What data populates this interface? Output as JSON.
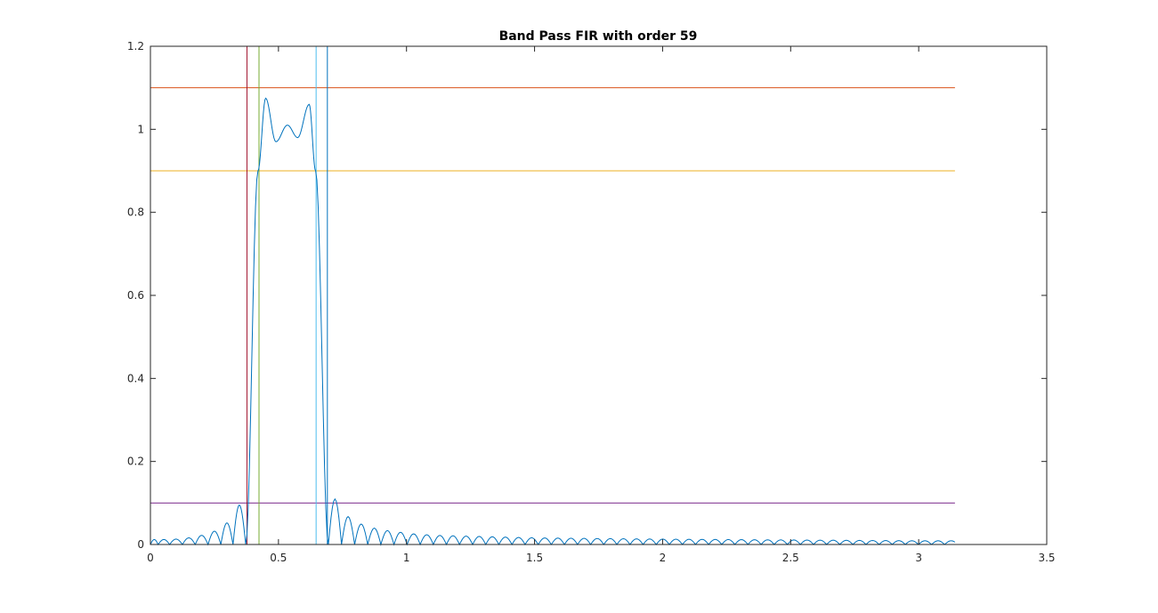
{
  "chart_data": {
    "type": "line",
    "title": "Band Pass FIR with order 59",
    "xlabel": "",
    "ylabel": "",
    "xlim": [
      0,
      3.5
    ],
    "ylim": [
      0,
      1.2
    ],
    "xticks": [
      0,
      0.5,
      1,
      1.5,
      2,
      2.5,
      3,
      3.5
    ],
    "xtick_labels": [
      "0",
      "0.5",
      "1",
      "1.5",
      "2",
      "2.5",
      "3",
      "3.5"
    ],
    "yticks": [
      0,
      0.2,
      0.4,
      0.6,
      0.8,
      1,
      1.2
    ],
    "ytick_labels": [
      "0",
      "0.2",
      "0.4",
      "0.6",
      "0.8",
      "1",
      "1.2"
    ],
    "grid": false,
    "box": true,
    "series": [
      {
        "kind": "magnitude-response",
        "color": "#0072bd",
        "x_range": [
          0,
          3.1416
        ],
        "passband_peaks": [
          {
            "x": 0.45,
            "y": 1.075
          },
          {
            "x": 0.49,
            "y": 0.97
          },
          {
            "x": 0.535,
            "y": 1.01
          },
          {
            "x": 0.575,
            "y": 0.98
          },
          {
            "x": 0.62,
            "y": 1.06
          }
        ],
        "lower_transition": [
          {
            "x": 0.372,
            "y": 0.0
          },
          {
            "x": 0.42,
            "y": 0.9
          },
          {
            "x": 0.45,
            "y": 1.075
          }
        ],
        "upper_transition": [
          {
            "x": 0.62,
            "y": 1.06
          },
          {
            "x": 0.645,
            "y": 0.9
          },
          {
            "x": 0.695,
            "y": 0.0
          }
        ],
        "left_sidelobe_peaks": [
          {
            "x": 0.01,
            "y": 0.012
          },
          {
            "x": 0.05,
            "y": 0.012
          },
          {
            "x": 0.1,
            "y": 0.013
          },
          {
            "x": 0.15,
            "y": 0.016
          },
          {
            "x": 0.2,
            "y": 0.022
          },
          {
            "x": 0.25,
            "y": 0.032
          },
          {
            "x": 0.3,
            "y": 0.052
          },
          {
            "x": 0.345,
            "y": 0.095
          }
        ],
        "right_sidelobe_peaks": [
          {
            "x": 0.72,
            "y": 0.11
          },
          {
            "x": 0.77,
            "y": 0.068
          },
          {
            "x": 0.82,
            "y": 0.05
          },
          {
            "x": 0.87,
            "y": 0.04
          },
          {
            "x": 0.92,
            "y": 0.034
          },
          {
            "x": 0.97,
            "y": 0.03
          },
          {
            "x": 1.02,
            "y": 0.026
          },
          {
            "x": 1.07,
            "y": 0.024
          },
          {
            "x": 1.12,
            "y": 0.022
          },
          {
            "x": 1.5,
            "y": 0.016
          },
          {
            "x": 2.0,
            "y": 0.013
          },
          {
            "x": 2.5,
            "y": 0.011
          },
          {
            "x": 3.0,
            "y": 0.009
          },
          {
            "x": 3.14,
            "y": 0.009
          }
        ]
      }
    ],
    "reference_lines": [
      {
        "orientation": "horizontal",
        "y": 1.1,
        "x_range": [
          0,
          3.1416
        ],
        "color": "#d95319"
      },
      {
        "orientation": "horizontal",
        "y": 0.9,
        "x_range": [
          0,
          3.1416
        ],
        "color": "#edb120"
      },
      {
        "orientation": "horizontal",
        "y": 0.1,
        "x_range": [
          0,
          3.1416
        ],
        "color": "#7e2f8e"
      },
      {
        "orientation": "vertical",
        "x": 0.377,
        "color": "#a2142f"
      },
      {
        "orientation": "vertical",
        "x": 0.424,
        "color": "#77ac30"
      },
      {
        "orientation": "vertical",
        "x": 0.647,
        "color": "#4dbeee"
      },
      {
        "orientation": "vertical",
        "x": 0.691,
        "color": "#0072bd"
      }
    ],
    "colors": {
      "axes": "#262626",
      "response": "#0072bd"
    }
  }
}
